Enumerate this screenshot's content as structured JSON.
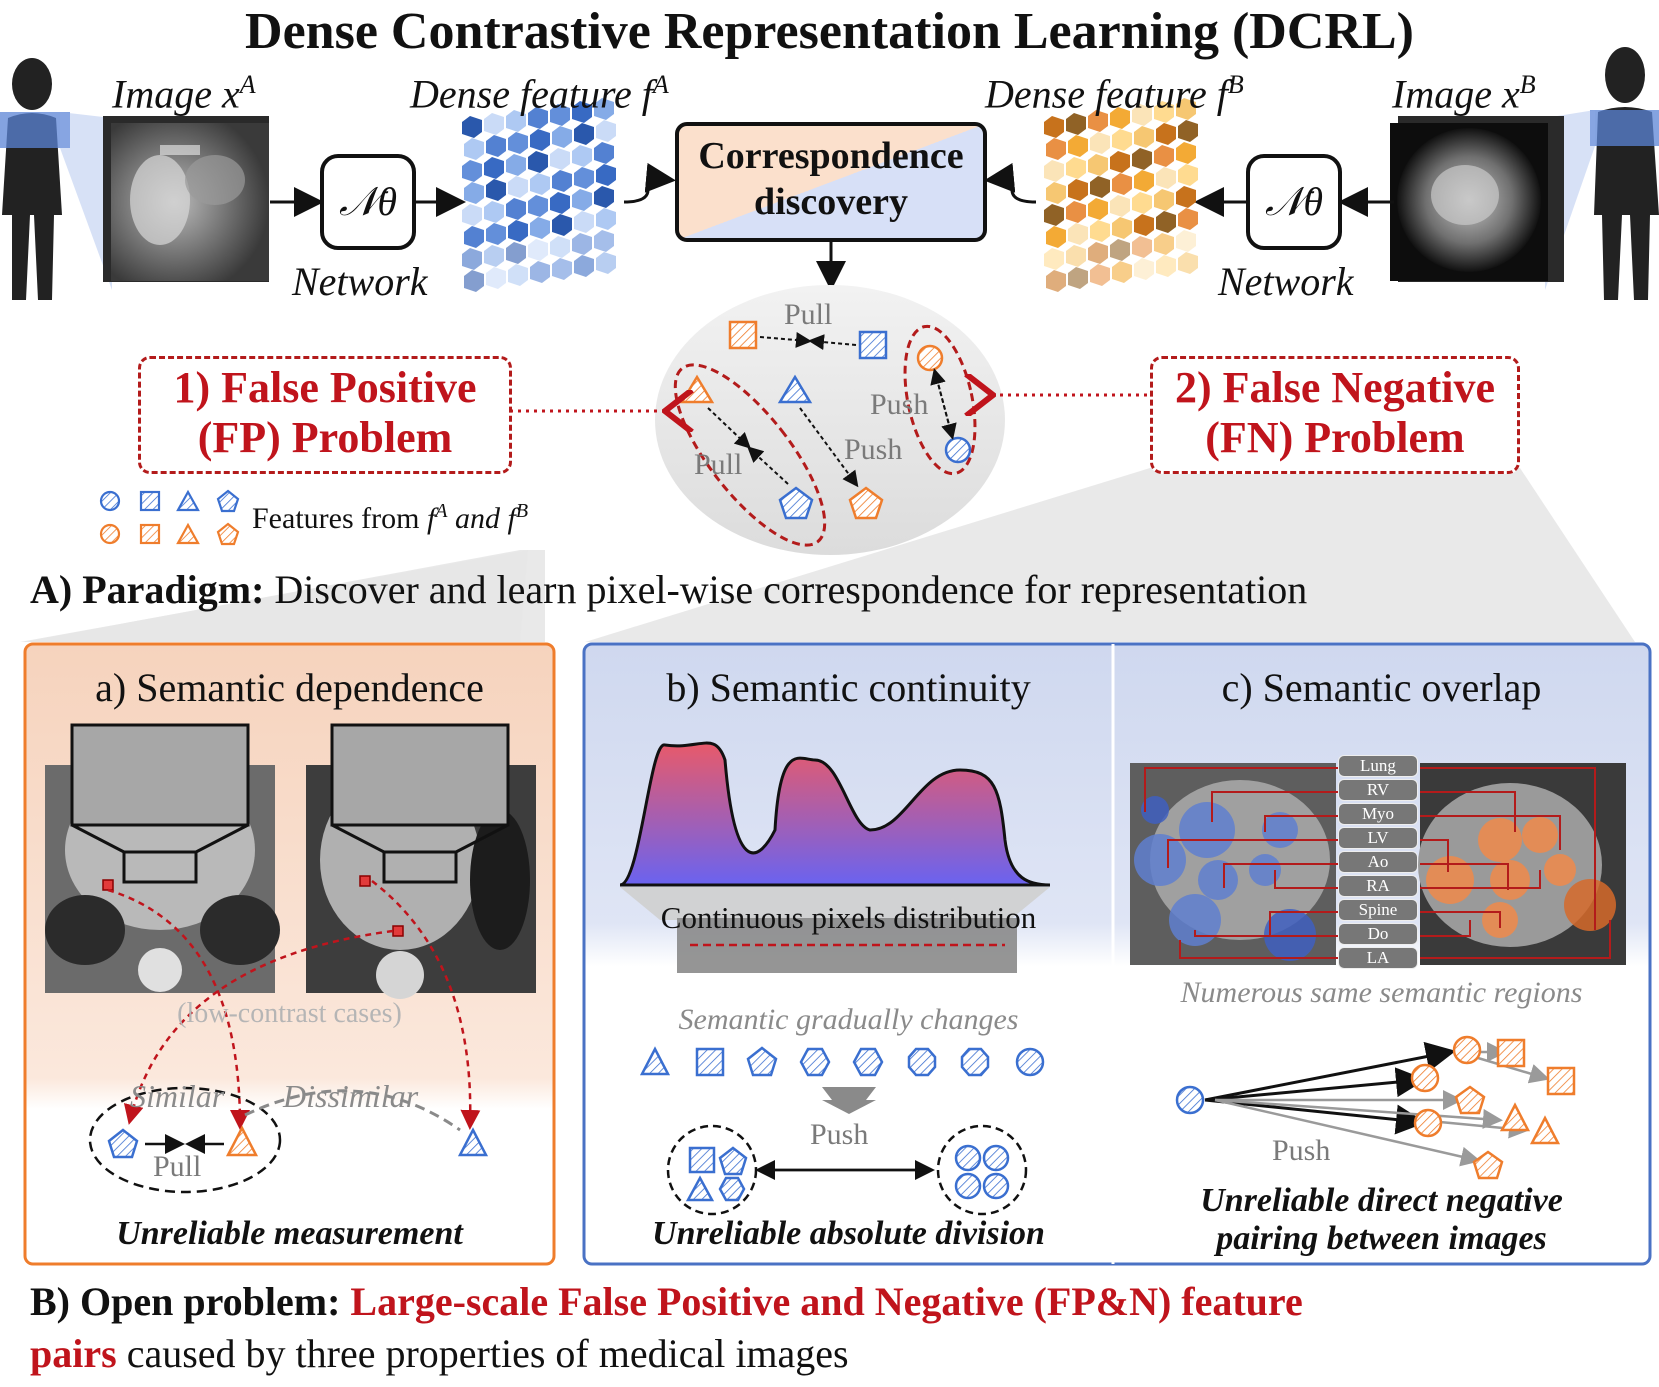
{
  "title": "Dense Contrastive Representation Learning (DCRL)",
  "top": {
    "image_a_label": "Image x",
    "image_a_sup": "A",
    "image_b_label": "Image x",
    "image_b_sup": "B",
    "feature_a_label": "Dense feature f",
    "feature_a_sup": "A",
    "feature_b_label": "Dense feature f",
    "feature_b_sup": "B",
    "network_symbol": "𝒩θ",
    "network_label": "Network",
    "correspondence_line1": "Correspondence",
    "correspondence_line2": "discovery",
    "pull_label": "Pull",
    "push_label": "Push"
  },
  "problems": {
    "fp_line1": "1) False Positive",
    "fp_line2": "(FP) Problem",
    "fn_line1": "2) False Negative",
    "fn_line2": "(FN) Problem"
  },
  "legend": {
    "text": "Features from ",
    "f_a": "f",
    "f_a_sup": "A",
    "and": " and ",
    "f_b": "f",
    "f_b_sup": "B",
    "colors": {
      "blue": "#3a6fd0",
      "orange": "#ef7d2c"
    }
  },
  "paradigm": {
    "label": "A) Paradigm:",
    "text": " Discover and learn pixel-wise correspondence for representation"
  },
  "panel_a": {
    "title": "a) Semantic dependence",
    "low_contrast": "(low-contrast cases)",
    "similar": "Similar",
    "dissimilar": "Dissimilar",
    "pull": "Pull",
    "caption": "Unreliable measurement"
  },
  "panel_b": {
    "title": "b) Semantic continuity",
    "distribution": "Continuous pixels distribution",
    "gradual": "Semantic gradually changes",
    "push": "Push",
    "caption": "Unreliable absolute division"
  },
  "panel_c": {
    "title": "c) Semantic overlap",
    "organs": [
      "Lung",
      "RV",
      "Myo",
      "LV",
      "Ao",
      "RA",
      "Spine",
      "Do",
      "LA"
    ],
    "numerous": "Numerous same semantic regions",
    "push": "Push",
    "caption_line1": "Unreliable direct negative",
    "caption_line2": "pairing between images"
  },
  "open_problem": {
    "label": "B) Open problem: ",
    "highlight": "Large-scale False Positive and Negative (FP&N) feature",
    "highlight2": "pairs",
    "rest": " caused by three properties of medical images"
  }
}
